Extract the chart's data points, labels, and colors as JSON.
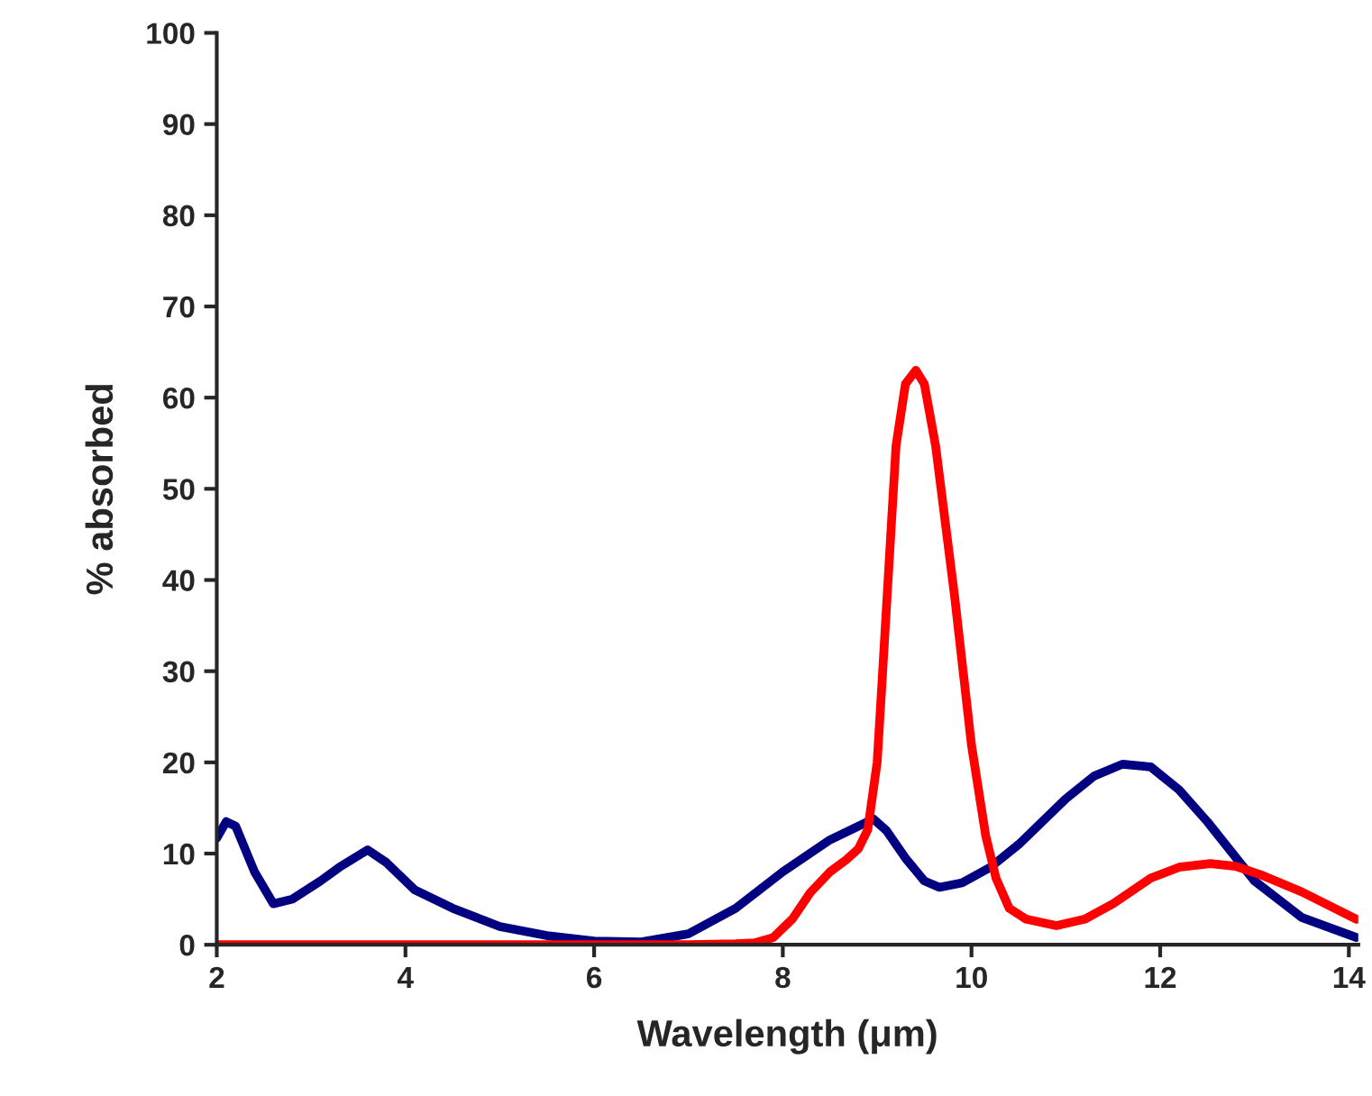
{
  "chart_data": {
    "type": "line",
    "xlabel": "Wavelength (μm)",
    "ylabel": "% absorbed",
    "xlim": [
      2,
      14.1
    ],
    "ylim": [
      0,
      100
    ],
    "xticks": [
      2,
      4,
      6,
      8,
      10,
      12,
      14
    ],
    "yticks": [
      0,
      10,
      20,
      30,
      40,
      50,
      60,
      70,
      80,
      90,
      100
    ],
    "grid": false,
    "marker": "none",
    "line_style": "solid",
    "series": [
      {
        "color": "#000080",
        "x": [
          2.0,
          2.1,
          2.2,
          2.4,
          2.6,
          2.8,
          3.1,
          3.3,
          3.6,
          3.8,
          4.1,
          4.5,
          5.0,
          5.5,
          6.0,
          6.5,
          7.0,
          7.5,
          8.0,
          8.5,
          8.96,
          9.1,
          9.3,
          9.5,
          9.66,
          9.9,
          10.2,
          10.5,
          11.0,
          11.3,
          11.6,
          11.9,
          12.2,
          12.5,
          13.0,
          13.5,
          14.08
        ],
        "values": [
          11.7,
          13.5,
          13,
          8,
          4.5,
          5,
          7,
          8.5,
          10.4,
          9,
          6,
          4,
          2,
          1,
          0.4,
          0.3,
          1.2,
          4,
          8,
          11.5,
          13.8,
          12.5,
          9.5,
          7,
          6.3,
          6.8,
          8.5,
          11,
          16,
          18.5,
          19.8,
          19.5,
          17,
          13.5,
          7,
          3,
          0.8
        ]
      },
      {
        "color": "#ff0000",
        "x": [
          2.0,
          4.0,
          6.0,
          7.0,
          7.5,
          7.7,
          7.9,
          8.1,
          8.29,
          8.5,
          8.67,
          8.8,
          8.9,
          9.0,
          9.05,
          9.2,
          9.3,
          9.41,
          9.5,
          9.62,
          9.82,
          10.0,
          10.15,
          10.26,
          10.4,
          10.58,
          10.9,
          11.2,
          11.5,
          11.9,
          12.2,
          12.53,
          12.8,
          13.06,
          13.5,
          14.08
        ],
        "values": [
          0,
          0,
          0,
          0,
          0.1,
          0.2,
          0.8,
          2.8,
          5.7,
          8,
          9.3,
          10.5,
          12.6,
          20,
          28.5,
          54.7,
          61.5,
          63,
          61.5,
          54.7,
          38.3,
          21.9,
          12,
          7.3,
          4,
          2.8,
          2.1,
          2.8,
          4.5,
          7.3,
          8.5,
          8.9,
          8.6,
          7.7,
          5.8,
          2.8
        ]
      }
    ]
  }
}
